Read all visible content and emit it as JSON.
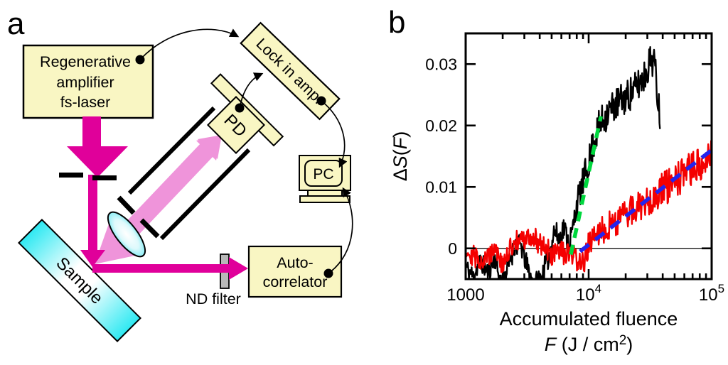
{
  "panel_a": {
    "label": "a",
    "boxes": {
      "laser": {
        "lines": [
          "Regenerative",
          "amplifier",
          "fs-laser"
        ]
      },
      "lockin": {
        "label": "Lock in amp."
      },
      "pd": {
        "label": "PD"
      },
      "pc": {
        "label": "PC"
      },
      "autocorrelator": {
        "lines": [
          "Auto-",
          "correlator"
        ]
      },
      "nd_filter": {
        "label": "ND filter"
      },
      "sample": {
        "label": "Sample"
      }
    },
    "colors": {
      "box_fill": "#f9f6c3",
      "beam_magenta": "#e0009a",
      "scatter_pink": "#ef94da",
      "sample_cyan": "#2ee9f2",
      "nd_gray": "#b8b8b8"
    }
  },
  "panel_b": {
    "label": "b"
  },
  "chart_data": {
    "type": "line",
    "x_scale": "log10",
    "xlim": [
      1000,
      100000
    ],
    "ylim": [
      -0.005,
      0.035
    ],
    "zero_line": 0,
    "grid": "off",
    "x_major_ticks": [
      {
        "value": 1000,
        "text": "1000"
      },
      {
        "value": 10000,
        "base": "10",
        "exp": "4"
      },
      {
        "value": 100000,
        "base": "10",
        "exp": "5"
      }
    ],
    "x_minor_ticks": [
      2000,
      3000,
      4000,
      5000,
      6000,
      7000,
      8000,
      9000,
      20000,
      30000,
      40000,
      50000,
      60000,
      70000,
      80000,
      90000
    ],
    "y_ticks": [
      {
        "value": 0,
        "text": "0"
      },
      {
        "value": 0.01,
        "text": "0.01"
      },
      {
        "value": 0.02,
        "text": "0.02"
      },
      {
        "value": 0.03,
        "text": "0.03"
      }
    ],
    "xlabel_line1": "Accumulated fluence",
    "xlabel_line2": [
      {
        "text": "F",
        "italic": true
      },
      {
        "text": " (J / cm"
      },
      {
        "text": "2",
        "sup": true
      },
      {
        "text": ")"
      }
    ],
    "ylabel": [
      {
        "text": "Δ"
      },
      {
        "text": "S",
        "italic": true
      },
      {
        "text": "("
      },
      {
        "text": "F",
        "italic": true
      },
      {
        "text": ")"
      }
    ],
    "series": [
      {
        "name": "black-trace",
        "color": "#000000",
        "stroke_width": 2.4,
        "seed": 11,
        "points": 360,
        "trend_log10x_y": [
          [
            3.0,
            -0.003
          ],
          [
            3.06,
            -0.0045
          ],
          [
            3.12,
            -0.002
          ],
          [
            3.18,
            -0.004
          ],
          [
            3.24,
            -0.0015
          ],
          [
            3.28,
            -0.0055
          ],
          [
            3.33,
            -0.004
          ],
          [
            3.4,
            0.0005
          ],
          [
            3.45,
            0.0005
          ],
          [
            3.5,
            -0.003
          ],
          [
            3.55,
            -0.006
          ],
          [
            3.62,
            -0.0045
          ],
          [
            3.68,
            -0.001
          ],
          [
            3.72,
            0.003
          ],
          [
            3.76,
            0.0015
          ],
          [
            3.8,
            0.0035
          ],
          [
            3.84,
            0.0005
          ],
          [
            3.87,
            0.003
          ],
          [
            3.9,
            0.007
          ],
          [
            3.95,
            0.0105
          ],
          [
            4.0,
            0.014
          ],
          [
            4.05,
            0.018
          ],
          [
            4.1,
            0.0205
          ],
          [
            4.15,
            0.022
          ],
          [
            4.22,
            0.0235
          ],
          [
            4.3,
            0.0245
          ],
          [
            4.38,
            0.026
          ],
          [
            4.45,
            0.028
          ],
          [
            4.5,
            0.0305
          ],
          [
            4.53,
            0.031
          ],
          [
            4.58,
            0.0215
          ]
        ],
        "noise_log10x_amp": [
          [
            3.0,
            0.0016
          ],
          [
            3.8,
            0.002
          ],
          [
            4.05,
            0.0028
          ],
          [
            4.58,
            0.0028
          ]
        ]
      },
      {
        "name": "red-trace",
        "color": "#f40000",
        "stroke_width": 2.4,
        "seed": 29,
        "points": 430,
        "trend_log10x_y": [
          [
            3.0,
            0.0
          ],
          [
            3.08,
            -0.0015
          ],
          [
            3.16,
            -0.002
          ],
          [
            3.24,
            0.0005
          ],
          [
            3.3,
            -0.0032
          ],
          [
            3.38,
            0.0008
          ],
          [
            3.46,
            0.0012
          ],
          [
            3.54,
            0.0018
          ],
          [
            3.62,
            0.0008
          ],
          [
            3.7,
            -0.0012
          ],
          [
            3.78,
            -0.0008
          ],
          [
            3.86,
            -0.0014
          ],
          [
            3.92,
            -0.0018
          ],
          [
            3.96,
            -0.003
          ],
          [
            4.0,
            0.0008
          ],
          [
            4.1,
            0.0028
          ],
          [
            4.2,
            0.0042
          ],
          [
            4.3,
            0.0055
          ],
          [
            4.4,
            0.0068
          ],
          [
            4.5,
            0.008
          ],
          [
            4.6,
            0.0095
          ],
          [
            4.7,
            0.0108
          ],
          [
            4.8,
            0.0122
          ],
          [
            4.9,
            0.0138
          ],
          [
            4.96,
            0.0152
          ],
          [
            5.0,
            0.0165
          ]
        ],
        "noise_log10x_amp": [
          [
            3.0,
            0.0018
          ],
          [
            3.9,
            0.002
          ],
          [
            4.4,
            0.0026
          ],
          [
            5.0,
            0.0032
          ]
        ]
      }
    ],
    "fit_lines": [
      {
        "name": "green-dashed-fit",
        "color": "#00d83e",
        "log10x1": 3.855,
        "y1": -0.001,
        "log10x2": 4.1,
        "y2": 0.0215,
        "dash": "14 10",
        "stroke_width": 5.5
      },
      {
        "name": "blue-dashed-fit",
        "color": "#2424ee",
        "log10x1": 3.93,
        "y1": -0.0005,
        "log10x2": 5.02,
        "y2": 0.0163,
        "dash": "16 11",
        "stroke_width": 5.5
      }
    ]
  }
}
